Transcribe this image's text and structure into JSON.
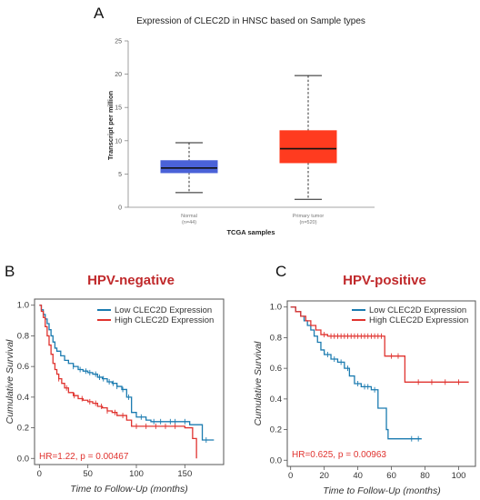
{
  "panels": {
    "a_letter": "A",
    "b_letter": "B",
    "c_letter": "C"
  },
  "chart_data": [
    {
      "type": "box",
      "title": "Expression of CLEC2D in HNSC based on Sample types",
      "xlabel": "TCGA samples",
      "ylabel": "Transcript per million",
      "ylim": [
        0,
        25
      ],
      "yticks": [
        "0",
        "5",
        "10",
        "15",
        "20",
        "25"
      ],
      "boxes": [
        {
          "label": "Normal",
          "n_label": "(n=44)",
          "color": "#4a62d8",
          "min": 2.2,
          "q1": 5.2,
          "median": 5.9,
          "q3": 7.0,
          "max": 9.7
        },
        {
          "label": "Primary tumor",
          "n_label": "(n=520)",
          "color": "#ff3b1f",
          "min": 1.2,
          "q1": 6.7,
          "median": 8.8,
          "q3": 11.5,
          "max": 19.8
        }
      ]
    },
    {
      "type": "line",
      "subtype": "kaplan-meier",
      "title": "HPV-negative",
      "xlabel": "Time to Follow-Up (months)",
      "ylabel": "Cumulative Survival",
      "xlim": [
        -5,
        190
      ],
      "ylim": [
        -0.04,
        1.04
      ],
      "xticks": [
        "0",
        "50",
        "100",
        "150"
      ],
      "yticks": [
        "0.0",
        "0.2",
        "0.4",
        "0.6",
        "0.8",
        "1.0"
      ],
      "annotation": "HR=1.22, p = 0.00467",
      "legend_position": "top-right",
      "series": [
        {
          "name": "Low CLEC2D Expression",
          "color": "#1b7bb0",
          "steps": [
            [
              0,
              1.0
            ],
            [
              2,
              0.97
            ],
            [
              4,
              0.94
            ],
            [
              6,
              0.91
            ],
            [
              8,
              0.88
            ],
            [
              10,
              0.84
            ],
            [
              12,
              0.8
            ],
            [
              14,
              0.76
            ],
            [
              16,
              0.72
            ],
            [
              18,
              0.7
            ],
            [
              22,
              0.67
            ],
            [
              26,
              0.64
            ],
            [
              30,
              0.62
            ],
            [
              35,
              0.6
            ],
            [
              40,
              0.58
            ],
            [
              45,
              0.57
            ],
            [
              50,
              0.56
            ],
            [
              55,
              0.55
            ],
            [
              60,
              0.53
            ],
            [
              65,
              0.52
            ],
            [
              70,
              0.5
            ],
            [
              75,
              0.49
            ],
            [
              80,
              0.47
            ],
            [
              85,
              0.45
            ],
            [
              90,
              0.4
            ],
            [
              95,
              0.3
            ],
            [
              100,
              0.27
            ],
            [
              110,
              0.25
            ],
            [
              115,
              0.24
            ],
            [
              155,
              0.22
            ],
            [
              168,
              0.12
            ],
            [
              180,
              0.12
            ]
          ],
          "censor_x": [
            35,
            42,
            48,
            52,
            58,
            62,
            66,
            72,
            76,
            80,
            86,
            92,
            105,
            118,
            125,
            135,
            140,
            150,
            172
          ]
        },
        {
          "name": "High CLEC2D Expression",
          "color": "#e0332f",
          "steps": [
            [
              0,
              1.0
            ],
            [
              2,
              0.96
            ],
            [
              4,
              0.92
            ],
            [
              6,
              0.86
            ],
            [
              8,
              0.8
            ],
            [
              10,
              0.74
            ],
            [
              12,
              0.68
            ],
            [
              14,
              0.62
            ],
            [
              16,
              0.58
            ],
            [
              18,
              0.55
            ],
            [
              20,
              0.52
            ],
            [
              23,
              0.49
            ],
            [
              26,
              0.46
            ],
            [
              30,
              0.43
            ],
            [
              35,
              0.41
            ],
            [
              40,
              0.39
            ],
            [
              45,
              0.38
            ],
            [
              50,
              0.37
            ],
            [
              55,
              0.36
            ],
            [
              60,
              0.34
            ],
            [
              65,
              0.33
            ],
            [
              70,
              0.31
            ],
            [
              75,
              0.3
            ],
            [
              80,
              0.28
            ],
            [
              90,
              0.25
            ],
            [
              95,
              0.21
            ],
            [
              150,
              0.2
            ],
            [
              158,
              0.13
            ],
            [
              162,
              0.0
            ]
          ],
          "censor_x": [
            20,
            28,
            36,
            44,
            52,
            58,
            64,
            70,
            78,
            86,
            100,
            110,
            120,
            130,
            140
          ]
        }
      ]
    },
    {
      "type": "line",
      "subtype": "kaplan-meier",
      "title": "HPV-positive",
      "xlabel": "Time to Follow-Up (months)",
      "ylabel": "Cumulative Survival",
      "xlim": [
        -2,
        110
      ],
      "ylim": [
        -0.04,
        1.04
      ],
      "xticks": [
        "0",
        "20",
        "40",
        "60",
        "80",
        "100"
      ],
      "yticks": [
        "0.0",
        "0.2",
        "0.4",
        "0.6",
        "0.8",
        "1.0"
      ],
      "annotation": "HR=0.625, p = 0.00963",
      "legend_position": "top-right",
      "series": [
        {
          "name": "Low CLEC2D Expression",
          "color": "#1b7bb0",
          "steps": [
            [
              0,
              1.0
            ],
            [
              3,
              0.97
            ],
            [
              6,
              0.94
            ],
            [
              8,
              0.91
            ],
            [
              10,
              0.88
            ],
            [
              12,
              0.85
            ],
            [
              14,
              0.81
            ],
            [
              16,
              0.77
            ],
            [
              18,
              0.72
            ],
            [
              20,
              0.69
            ],
            [
              24,
              0.66
            ],
            [
              28,
              0.64
            ],
            [
              32,
              0.6
            ],
            [
              35,
              0.55
            ],
            [
              38,
              0.5
            ],
            [
              42,
              0.48
            ],
            [
              48,
              0.46
            ],
            [
              52,
              0.34
            ],
            [
              57,
              0.2
            ],
            [
              58,
              0.14
            ],
            [
              78,
              0.14
            ]
          ],
          "censor_x": [
            22,
            26,
            30,
            34,
            40,
            44,
            46,
            50,
            72,
            76
          ]
        },
        {
          "name": "High CLEC2D Expression",
          "color": "#e0332f",
          "steps": [
            [
              0,
              1.0
            ],
            [
              3,
              0.97
            ],
            [
              6,
              0.94
            ],
            [
              9,
              0.91
            ],
            [
              12,
              0.88
            ],
            [
              15,
              0.85
            ],
            [
              18,
              0.82
            ],
            [
              22,
              0.81
            ],
            [
              56,
              0.68
            ],
            [
              68,
              0.51
            ],
            [
              106,
              0.51
            ]
          ],
          "censor_x": [
            20,
            24,
            26,
            28,
            30,
            32,
            34,
            36,
            38,
            40,
            42,
            44,
            46,
            48,
            50,
            52,
            54,
            60,
            64,
            76,
            84,
            92,
            100
          ]
        }
      ]
    }
  ]
}
